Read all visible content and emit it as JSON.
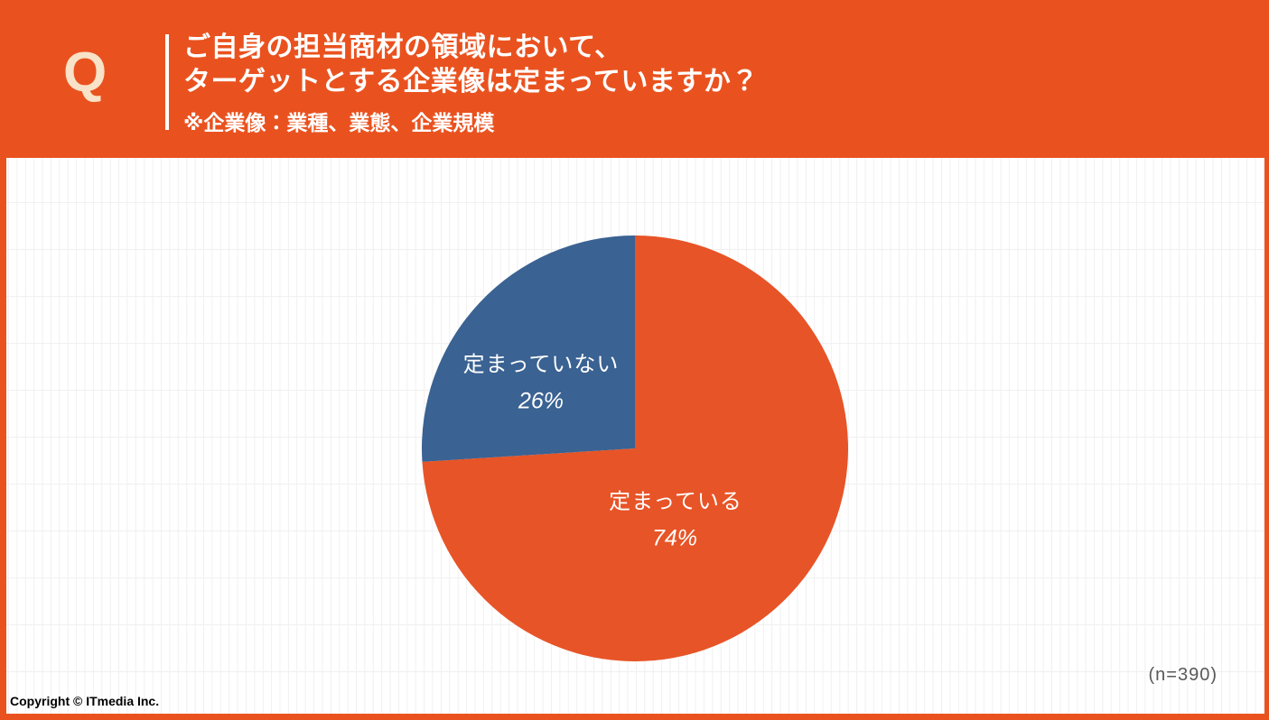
{
  "header": {
    "q_mark": "Q",
    "question_line1": "ご自身の担当商材の領域において、",
    "question_line2": "ターゲットとする企業像は定まっていますか？",
    "note": "※企業像：業種、業態、企業規模"
  },
  "chart_data": {
    "type": "pie",
    "title": "ターゲットとする企業像は定まっていますか？",
    "slices": [
      {
        "label": "定まっている",
        "value": 74,
        "pct_label": "74%",
        "color": "#E75427"
      },
      {
        "label": "定まっていない",
        "value": 26,
        "pct_label": "26%",
        "color": "#3A6292"
      }
    ],
    "start_angle_deg": 0,
    "direction": "clockwise",
    "legend_position": "none (labels inside slices)",
    "sample_size": "(n=390)"
  },
  "footer": {
    "copyright": "Copyright © ITmedia Inc.",
    "sample_size": "(n=390)"
  },
  "colors": {
    "brand_orange": "#E9521F",
    "pie_orange": "#E75427",
    "pie_blue": "#3A6292",
    "q_mark_cream": "#F8E2C8",
    "sample_gray": "#595959"
  }
}
